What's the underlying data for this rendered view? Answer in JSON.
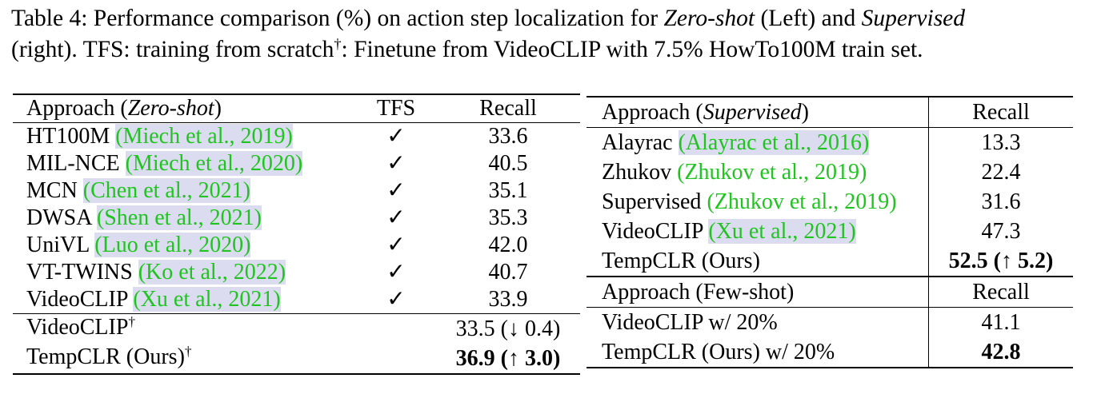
{
  "caption": {
    "line1_prefix": "Table 4: Performance comparison (%) on action step localization for ",
    "line1_zero_shot": "Zero-shot",
    "line1_mid": " (Left) and ",
    "line1_supervised": "Supervised",
    "line2_prefix": "(right). TFS: training from scratch",
    "dagger": "†",
    "line2_suffix": ": Finetune from VideoCLIP with 7.5% HowTo100M train set."
  },
  "left_table": {
    "header": {
      "approach": "Approach (",
      "approach_italic": "Zero-shot",
      "approach_close": ")",
      "tfs": "TFS",
      "recall": "Recall"
    },
    "rows": [
      {
        "method": "HT100M",
        "cite": "(Miech et al., 2019)",
        "tfs": "✓",
        "recall": "33.6"
      },
      {
        "method": "MIL-NCE",
        "cite": "(Miech et al., 2020)",
        "tfs": "✓",
        "recall": "40.5"
      },
      {
        "method": "MCN",
        "cite": "(Chen et al., 2021)",
        "tfs": "✓",
        "recall": "35.1"
      },
      {
        "method": "DWSA",
        "cite": "(Shen et al., 2021)",
        "tfs": "✓",
        "recall": "35.3"
      },
      {
        "method": "UniVL",
        "cite": "(Luo et al., 2020)",
        "tfs": "✓",
        "recall": "42.0"
      },
      {
        "method": "VT-TWINS",
        "cite": "(Ko et al., 2022)",
        "tfs": "✓",
        "recall": "40.7"
      },
      {
        "method": "VideoCLIP",
        "cite": "(Xu et al., 2021)",
        "tfs": "✓",
        "recall": "33.9"
      }
    ],
    "finetuned": [
      {
        "method": "VideoCLIP",
        "dagger": "†",
        "recall": "33.5",
        "delta": " (↓ 0.4)",
        "bold": false
      },
      {
        "method": "TempCLR (Ours)",
        "dagger": "†",
        "recall": "36.9",
        "delta": " (↑ 3.0)",
        "bold": true
      }
    ]
  },
  "right_table": {
    "header": {
      "approach": "Approach (",
      "approach_italic": "Supervised",
      "approach_close": ")",
      "recall": "Recall"
    },
    "rows": [
      {
        "method": "Alayrac",
        "cite": "(Alayrac et al., 2016)",
        "recall": "13.3"
      },
      {
        "method": "Zhukov",
        "cite": "(Zhukov et al., 2019)",
        "recall": "22.4"
      },
      {
        "method": "Supervised",
        "cite": "(Zhukov et al., 2019)",
        "recall": "31.6"
      },
      {
        "method": "VideoCLIP",
        "cite": "(Xu et al., 2021)",
        "recall": "47.3"
      },
      {
        "method": "TempCLR (Ours)",
        "recall": "52.5",
        "delta": " (↑ 5.2)"
      }
    ],
    "header2": {
      "approach": "Approach (Few-shot)",
      "recall": "Recall"
    },
    "fewshot": [
      {
        "method": "VideoCLIP w/ 20%",
        "recall": "41.1"
      },
      {
        "method": "TempCLR (Ours) w/ 20%",
        "recall": "42.8"
      }
    ]
  }
}
